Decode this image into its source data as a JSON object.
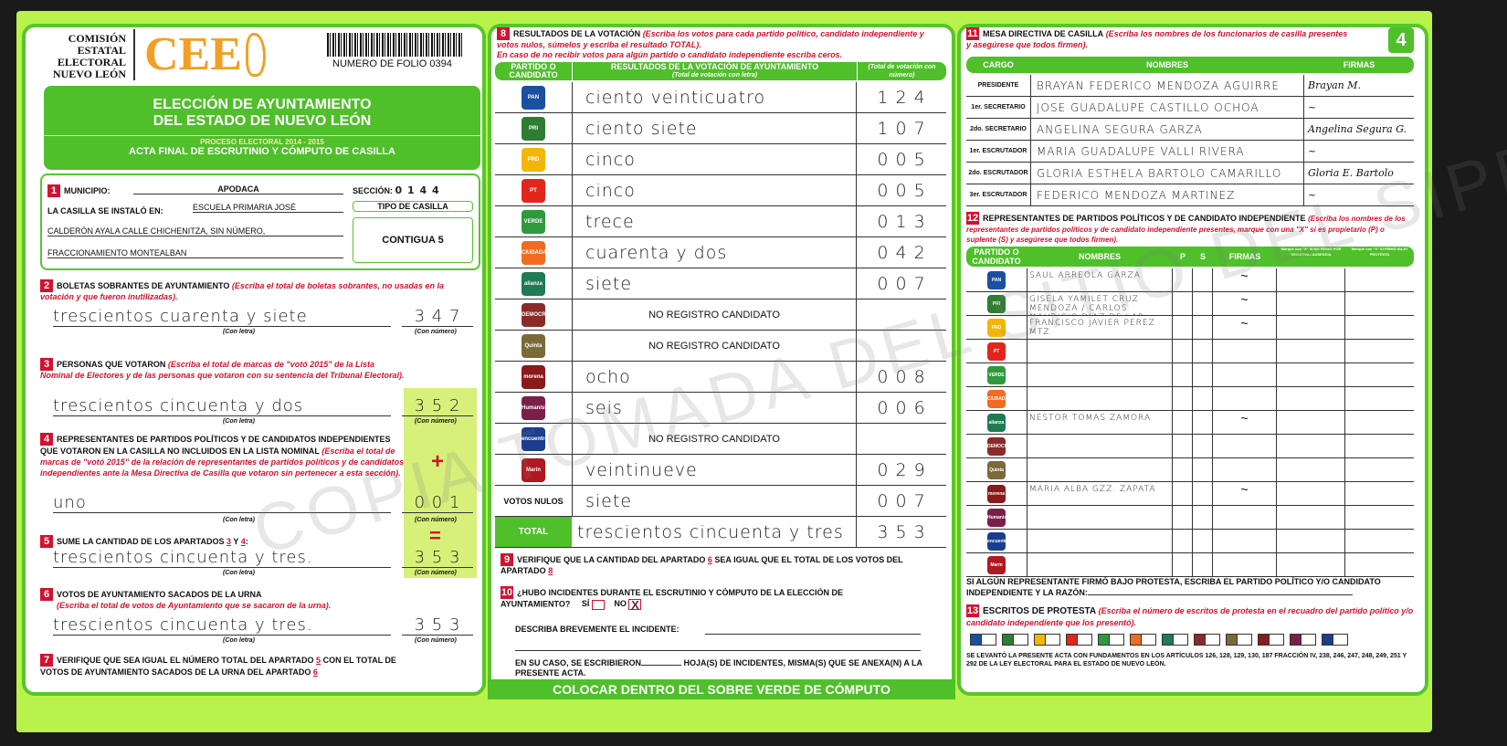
{
  "header": {
    "org": [
      "COMISIÓN",
      "ESTATAL",
      "ELECTORAL",
      "NUEVO LEÓN"
    ],
    "logo": "CEE",
    "folio": "NUMERO DE FOLIO 0394",
    "title1": "ELECCIÓN DE AYUNTAMIENTO",
    "title2": "DEL ESTADO DE NUEVO LEÓN",
    "proceso": "PROCESO ELECTORAL 2014 - 2015",
    "acta": "ACTA FINAL DE ESCRUTINIO Y CÓMPUTO DE CASILLA"
  },
  "s1": {
    "n": "1",
    "municipio_label": "MUNICIPIO:",
    "municipio": "APODACA",
    "seccion_label": "SECCIÓN:",
    "seccion": "0 1 4 4",
    "instalo_label": "LA CASILLA SE INSTALÓ EN:",
    "line1": "ESCUELA PRIMARIA JOSÉ",
    "line2": "CALDERÓN AYALA CALLE CHICHENITZA, SIN NÚMERO,",
    "line3": "FRACCIONAMIENTO MONTEALBAN",
    "tipo_label": "TIPO DE CASILLA",
    "tipo": "CONTIGUA 5"
  },
  "con_letra": "(Con letra)",
  "con_numero": "(Con número)",
  "s2": {
    "n": "2",
    "title": "BOLETAS SOBRANTES DE AYUNTAMIENTO",
    "note": "(Escriba el total de boletas sobrantes, no usadas en la votación y que fueron inutilizadas).",
    "letra": "trescientos cuarenta y siete",
    "numero": "3 4 7"
  },
  "s3": {
    "n": "3",
    "title": "PERSONAS QUE VOTARON",
    "note": "(Escriba el total de marcas de \"votó 2015\" de la Lista Nominal de Electores y de las personas que votaron con su sentencia del Tribunal Electoral).",
    "letra": "trescientos cincuenta y dos",
    "numero": "3 5 2"
  },
  "s4": {
    "n": "4",
    "title": "REPRESENTANTES DE PARTIDOS POLÍTICOS Y DE CANDIDATOS INDEPENDIENTES QUE VOTARON EN LA CASILLA NO INCLUIDOS EN LA LISTA NOMINAL",
    "note": "(Escriba el total de marcas de \"votó 2015\" de la relación de representantes de partidos políticos y de candidatos independientes ante la Mesa Directiva de Casilla que votaron sin pertenecer a esta sección).",
    "letra": "uno",
    "numero": "0 0 1",
    "plus": "+"
  },
  "s5": {
    "n": "5",
    "title": "SUME LA CANTIDAD DE LOS APARTADOS",
    "a": "3",
    "y": "Y",
    "b": "4",
    "letra": "trescientos cincuenta y tres.",
    "numero": "3 5 3",
    "eq": "="
  },
  "s6": {
    "n": "6",
    "title": "VOTOS DE AYUNTAMIENTO SACADOS DE LA URNA",
    "note": "(Escriba el total de votos de Ayuntamiento que se sacaron de la urna).",
    "letra": "trescientos cincuenta y tres.",
    "numero": "3 5 3"
  },
  "s7": {
    "n": "7",
    "text1": "VERIFIQUE QUE SEA IGUAL EL NÚMERO TOTAL DEL APARTADO",
    "a": "5",
    "text2": "CON EL TOTAL DE VOTOS DE AYUNTAMIENTO SACADOS DE LA URNA DEL APARTADO",
    "b": "6"
  },
  "s8": {
    "n": "8",
    "title": "RESULTADOS DE LA VOTACIÓN",
    "note": "(Escriba los votos para cada partido político, candidato independiente y votos nulos, súmelos y escriba el resultado TOTAL).",
    "note2": "En caso de no recibir votos para algún partido o candidato independiente escriba ceros.",
    "h1": "PARTIDO O CANDIDATO",
    "h2": "RESULTADOS DE LA VOTACIÓN DE AYUNTAMIENTO",
    "h2b": "(Total de votación con letra)",
    "h3": "(Total de votación con número)",
    "rows": [
      {
        "party": "PAN",
        "color": "#1b4fa0",
        "letra": "ciento veinticuatro",
        "numero": "1 2 4"
      },
      {
        "party": "PRI",
        "color": "#2e7d32",
        "letra": "ciento siete",
        "numero": "1 0 7"
      },
      {
        "party": "PRD",
        "color": "#f2b705",
        "letra": "cinco",
        "numero": "0 0 5"
      },
      {
        "party": "PT",
        "color": "#e3261b",
        "letra": "cinco",
        "numero": "0 0 5"
      },
      {
        "party": "VERDE",
        "color": "#2e9a3c",
        "letra": "trece",
        "numero": "0 1 3"
      },
      {
        "party": "CIUDADANO",
        "color": "#f26b21",
        "letra": "cuarenta y dos",
        "numero": "0 4 2"
      },
      {
        "party": "alianza",
        "color": "#1e7b52",
        "letra": "siete",
        "numero": "0 0 7"
      },
      {
        "party": "DEMOCRATA",
        "color": "#8a2a2a",
        "letra": "NO REGISTRO CANDIDATO",
        "numero": ""
      },
      {
        "party": "Quinta",
        "color": "#7a6a3a",
        "letra": "NO REGISTRO CANDIDATO",
        "numero": ""
      },
      {
        "party": "morena",
        "color": "#8b1a1a",
        "letra": "ocho",
        "numero": "0 0 8"
      },
      {
        "party": "Humanista",
        "color": "#7b1f4a",
        "letra": "seis",
        "numero": "0 0 6"
      },
      {
        "party": "encuentro",
        "color": "#1a3d8f",
        "letra": "NO REGISTRO CANDIDATO",
        "numero": ""
      },
      {
        "party": "Marín",
        "color": "#b0181f",
        "letra": "veintinueve",
        "numero": "0 2 9"
      },
      {
        "party": "VOTOS NULOS",
        "color": "",
        "letra": "siete",
        "numero": "0 0 7"
      }
    ],
    "total_label": "TOTAL",
    "total_letra": "trescientos cincuenta y tres",
    "total_numero": "3 5 3"
  },
  "s9": {
    "n": "9",
    "text1": "VERIFIQUE QUE LA CANTIDAD DEL APARTADO",
    "a": "6",
    "text2": "SEA IGUAL QUE EL TOTAL DE LOS VOTOS DEL APARTADO",
    "b": "8"
  },
  "s10": {
    "n": "10",
    "q": "¿HUBO INCIDENTES DURANTE EL ESCRUTINIO Y CÓMPUTO DE LA ELECCIÓN DE AYUNTAMIENTO?",
    "si": "SÍ",
    "no": "NO",
    "no_mark": "X",
    "describe": "DESCRIBA BREVEMENTE EL INCIDENTE:",
    "hojas1": "EN SU CASO, SE ESCRIBIERON",
    "hojas2": "HOJA(S) DE INCIDENTES, MISMA(S) QUE SE ANEXA(N) A LA PRESENTE ACTA."
  },
  "footer_bar": "COLOCAR DENTRO DEL SOBRE VERDE DE CÓMPUTO",
  "page_number": "4",
  "s11": {
    "n": "11",
    "title": "MESA DIRECTIVA DE CASILLA",
    "note": "(Escriba los nombres de los funcionarios de casilla presentes y asegúrese que todos firmen).",
    "h": [
      "CARGO",
      "NOMBRES",
      "FIRMAS"
    ],
    "rows": [
      {
        "cargo": "PRESIDENTE",
        "nombre": "BRAYAN FEDERICO MENDOZA AGUIRRE",
        "firma": "Brayan M."
      },
      {
        "cargo": "1er. SECRETARIO",
        "nombre": "JOSE GUADALUPE CASTILLO OCHOA",
        "firma": "~"
      },
      {
        "cargo": "2do. SECRETARIO",
        "nombre": "ANGELINA SEGURA GARZA",
        "firma": "Angelina Segura G."
      },
      {
        "cargo": "1er. ESCRUTADOR",
        "nombre": "MARIA GUADALUPE VALLI RIVERA",
        "firma": "~"
      },
      {
        "cargo": "2do. ESCRUTADOR",
        "nombre": "GLORIA ESTHELA BARTOLO CAMARILLO",
        "firma": "Gloria E. Bartolo"
      },
      {
        "cargo": "3er. ESCRUTADOR",
        "nombre": "FEDERICO MENDOZA MARTINEZ",
        "firma": "~"
      }
    ]
  },
  "s12": {
    "n": "12",
    "title": "REPRESENTANTES DE PARTIDOS POLÍTICOS Y DE CANDIDATO INDEPENDIENTE",
    "note": "(Escriba los nombres de los representantes de partidos políticos y de candidato independiente presentes, marque con una \"X\" si es propietario (P) o suplente (S) y asegúrese que todos firmen).",
    "h": [
      "PARTIDO O CANDIDATO",
      "NOMBRES",
      "P",
      "S",
      "FIRMAS",
      "Marque con \"X\" SI NO FIRMÓ POR NEGATIVA / AUSENCIA",
      "Marque con \"X\" SI FIRMÓ BAJO PROTESTA"
    ],
    "rows": [
      {
        "party": "PAN",
        "color": "#1b4fa0",
        "nombre": "SAUL ARREOLA GARZA",
        "firma": "~"
      },
      {
        "party": "PRI",
        "color": "#2e7d32",
        "nombre": "GISELA YAMILET CRUZ MENDOZA / CARLOS MAURICIO DIAZ DE LAR",
        "firma": "~"
      },
      {
        "party": "PRD",
        "color": "#f2b705",
        "nombre": "FRANCISCO JAVIER PEREZ MTZ.",
        "firma": "~"
      },
      {
        "party": "PT",
        "color": "#e3261b",
        "nombre": "",
        "firma": ""
      },
      {
        "party": "VERDE",
        "color": "#2e9a3c",
        "nombre": "",
        "firma": ""
      },
      {
        "party": "CIUDADANO",
        "color": "#f26b21",
        "nombre": "",
        "firma": ""
      },
      {
        "party": "alianza",
        "color": "#1e7b52",
        "nombre": "NESTOR TOMAS ZAMORA",
        "firma": "~"
      },
      {
        "party": "DEMOCRATA",
        "color": "#8a2a2a",
        "nombre": "",
        "firma": ""
      },
      {
        "party": "Quinta",
        "color": "#7a6a3a",
        "nombre": "",
        "firma": ""
      },
      {
        "party": "morena",
        "color": "#8b1a1a",
        "nombre": "MARIA ALBA GZZ. ZAPATA",
        "firma": "~"
      },
      {
        "party": "Humanista",
        "color": "#7b1f4a",
        "nombre": "",
        "firma": ""
      },
      {
        "party": "encuentro",
        "color": "#1a3d8f",
        "nombre": "",
        "firma": ""
      },
      {
        "party": "Marín",
        "color": "#b0181f",
        "nombre": "",
        "firma": ""
      }
    ],
    "protesta": "SI ALGÚN REPRESENTANTE FIRMÓ BAJO PROTESTA, ESCRIBA EL PARTIDO POLÍTICO Y/O CANDIDATO INDEPENDIENTE Y LA RAZÓN:"
  },
  "s13": {
    "n": "13",
    "title": "ESCRITOS DE PROTESTA",
    "note": "(Escriba el número de escritos de protesta en el recuadro del partido político y/o candidato independiente que los presentó).",
    "boxes": [
      "#1b4fa0",
      "#2e7d32",
      "#f2b705",
      "#e3261b",
      "#2e9a3c",
      "#f26b21",
      "#1e7b52",
      "#8a2a2a",
      "#7a6a3a",
      "#8b1a1a",
      "#7b1f4a",
      "#1a3d8f"
    ],
    "legal": "SE LEVANTÓ LA PRESENTE ACTA CON FUNDAMENTOS EN LOS ARTÍCULOS 126, 128, 129, 130, 187 FRACCIÓN IV, 238, 246, 247, 248, 249, 251 Y 292 DE LA LEY ELECTORAL PARA EL ESTADO DE NUEVO LEÓN."
  },
  "watermark": "COPIA TOMADA DEL SITIO DEL SIPRE"
}
